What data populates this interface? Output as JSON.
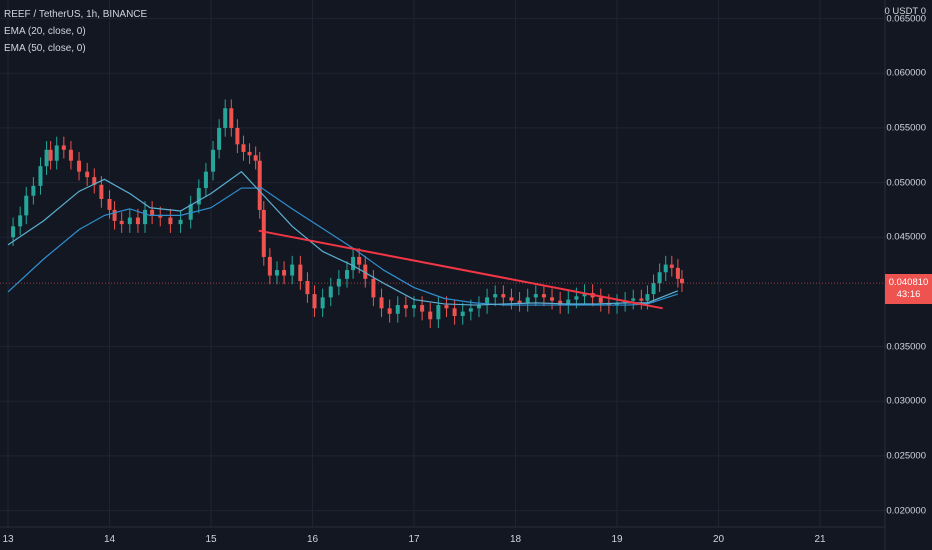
{
  "header": {
    "symbol_line": "REEF / TetherUS, 1h, BINANCE",
    "ema20_label": "EMA (20, close, 0)",
    "ema50_label": "EMA (50, close, 0)"
  },
  "price_axis": {
    "unit": "0 USDT 0",
    "ticks": [
      "0.065000",
      "0.060000",
      "0.055000",
      "0.050000",
      "0.045000",
      "0.035000",
      "0.030000",
      "0.025000",
      "0.020000"
    ]
  },
  "time_axis": {
    "ticks": [
      "13",
      "14",
      "15",
      "16",
      "17",
      "18",
      "19",
      "20",
      "21"
    ]
  },
  "last_price": {
    "value": "0.040810",
    "countdown": "43:16",
    "color": "#ef5350"
  },
  "colors": {
    "background": "#131722",
    "up_candle": "#26a69a",
    "down_candle": "#ef5350",
    "ema20": "#5ab0d3",
    "ema50": "#2f8fd0",
    "trendline": "#f23645"
  },
  "chart_data": {
    "type": "candlestick",
    "title": "REEF / TetherUS, 1h, BINANCE",
    "ylim": [
      0.0185,
      0.0667
    ],
    "x_domain": [
      "13",
      "21"
    ],
    "series": [
      {
        "name": "EMA (20, close, 0)",
        "values": [
          0.0443,
          0.0465,
          0.0492,
          0.0503,
          0.049,
          0.0477,
          0.0474,
          0.049,
          0.051,
          0.049,
          0.046,
          0.0437,
          0.0424,
          0.0408,
          0.0393,
          0.0389,
          0.0388,
          0.0389,
          0.039,
          0.0389,
          0.0389,
          0.039,
          0.039,
          0.0401
        ]
      },
      {
        "name": "EMA (50, close, 0)",
        "values": [
          0.04,
          0.043,
          0.0457,
          0.047,
          0.0476,
          0.047,
          0.047,
          0.0477,
          0.0495,
          0.0495,
          0.0476,
          0.0458,
          0.044,
          0.042,
          0.0404,
          0.0394,
          0.039,
          0.0388,
          0.0388,
          0.0388,
          0.0388,
          0.0388,
          0.0389,
          0.0398
        ]
      }
    ],
    "ema_x": [
      0,
      0.35,
      0.7,
      0.95,
      1.2,
      1.4,
      1.7,
      2.0,
      2.3,
      2.5,
      2.8,
      3.1,
      3.4,
      3.7,
      4.0,
      4.3,
      4.6,
      4.9,
      5.2,
      5.5,
      5.8,
      6.1,
      6.3,
      6.6
    ],
    "trendline": {
      "from": [
        2.47,
        0.0456
      ],
      "to": [
        6.45,
        0.0385
      ]
    },
    "candles": []
  }
}
